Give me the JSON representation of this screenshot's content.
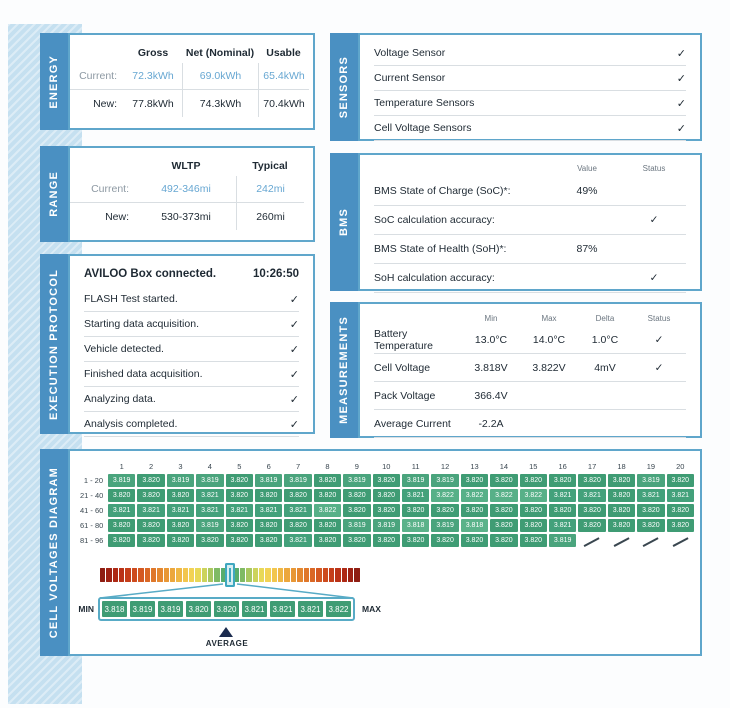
{
  "page": {
    "background": "#FCFDFE",
    "accent_blue": "#4A90C2",
    "panel_border": "#5FA6CB",
    "value_blue": "#67A7D2",
    "label_gray": "#8D99A3",
    "text_dark": "#1E2933",
    "grid_green": "#3F9C74",
    "teal": "#3FA7C0",
    "check_glyph": "✓"
  },
  "energy": {
    "tab": "ENERGY",
    "columns": [
      "Gross",
      "Net (Nominal)",
      "Usable"
    ],
    "rows": [
      {
        "label": "Current:",
        "values": [
          "72.3kWh",
          "69.0kWh",
          "65.4kWh"
        ]
      },
      {
        "label": "New:",
        "values": [
          "77.8kWh",
          "74.3kWh",
          "70.4kWh"
        ]
      }
    ]
  },
  "range": {
    "tab": "RANGE",
    "columns": [
      "WLTP",
      "Typical"
    ],
    "rows": [
      {
        "label": "Current:",
        "values": [
          "492-346mi",
          "242mi"
        ]
      },
      {
        "label": "New:",
        "values": [
          "530-373mi",
          "260mi"
        ]
      }
    ]
  },
  "execution_protocol": {
    "tab": "EXECUTION PROTOCOL",
    "header_label": "AVILOO Box connected.",
    "header_time": "10:26:50",
    "steps": [
      "FLASH Test started.",
      "Starting data acquisition.",
      "Vehicle detected.",
      "Finished data acquisition.",
      "Analyzing data.",
      "Analysis completed."
    ]
  },
  "sensors": {
    "tab": "SENSORS",
    "items": [
      "Voltage Sensor",
      "Current Sensor",
      "Temperature Sensors",
      "Cell Voltage Sensors"
    ]
  },
  "bms": {
    "tab": "BMS",
    "value_header": "Value",
    "status_header": "Status",
    "rows": [
      {
        "label": "BMS State of Charge (SoC)*:",
        "value": "49%",
        "check": false
      },
      {
        "label": "SoC calculation accuracy:",
        "value": "",
        "check": true
      },
      {
        "label": "BMS State of Health (SoH)*:",
        "value": "87%",
        "check": false
      },
      {
        "label": "SoH calculation accuracy:",
        "value": "",
        "check": true
      }
    ]
  },
  "measurements": {
    "tab": "MEASUREMENTS",
    "columns": [
      "Min",
      "Max",
      "Delta",
      "Status"
    ],
    "rows": [
      {
        "label": "Battery Temperature",
        "min": "13.0°C",
        "max": "14.0°C",
        "delta": "1.0°C",
        "check": true
      },
      {
        "label": "Cell Voltage",
        "min": "3.818V",
        "max": "3.822V",
        "delta": "4mV",
        "check": true
      },
      {
        "label": "Pack Voltage",
        "min": "366.4V",
        "max": "",
        "delta": "",
        "check": false
      },
      {
        "label": "Average Current",
        "min": "-2.2A",
        "max": "",
        "delta": "",
        "check": false
      }
    ]
  },
  "cell_voltages": {
    "tab": "CELL VOLTAGES DIAGRAM",
    "min_label": "MIN",
    "max_label": "MAX",
    "average_label": "AVERAGE"
  },
  "chart_data": {
    "type": "heatmap",
    "title": "Cell Voltages Diagram",
    "unit": "V",
    "columns": [
      1,
      2,
      3,
      4,
      5,
      6,
      7,
      8,
      9,
      10,
      11,
      12,
      13,
      14,
      15,
      16,
      17,
      18,
      19,
      20
    ],
    "row_labels": [
      "1 - 20",
      "21 - 40",
      "41 - 60",
      "61 - 80",
      "81 - 96"
    ],
    "values": [
      [
        "3.819",
        "3.820",
        "3.819",
        "3.819",
        "3.820",
        "3.819",
        "3.819",
        "3.820",
        "3.819",
        "3.820",
        "3.819",
        "3.819",
        "3.820",
        "3.820",
        "3.820",
        "3.820",
        "3.820",
        "3.820",
        "3.819",
        "3.820"
      ],
      [
        "3.820",
        "3.820",
        "3.820",
        "3.821",
        "3.820",
        "3.820",
        "3.820",
        "3.820",
        "3.820",
        "3.820",
        "3.821",
        "3.822",
        "3.822",
        "3.822",
        "3.822",
        "3.821",
        "3.821",
        "3.820",
        "3.821",
        "3.821"
      ],
      [
        "3.821",
        "3.821",
        "3.821",
        "3.821",
        "3.821",
        "3.821",
        "3.821",
        "3.822",
        "3.820",
        "3.820",
        "3.820",
        "3.820",
        "3.820",
        "3.820",
        "3.820",
        "3.820",
        "3.820",
        "3.820",
        "3.820",
        "3.820"
      ],
      [
        "3.820",
        "3.820",
        "3.820",
        "3.819",
        "3.820",
        "3.820",
        "3.820",
        "3.820",
        "3.819",
        "3.819",
        "3.818",
        "3.819",
        "3.818",
        "3.820",
        "3.820",
        "3.821",
        "3.820",
        "3.820",
        "3.820",
        "3.820"
      ],
      [
        "3.820",
        "3.820",
        "3.820",
        "3.820",
        "3.820",
        "3.820",
        "3.821",
        "3.820",
        "3.820",
        "3.820",
        "3.820",
        "3.820",
        "3.820",
        "3.820",
        "3.820",
        "3.819",
        null,
        null,
        null,
        null
      ]
    ],
    "value_colors": {
      "3.818": "#5BB28A",
      "3.819": "#4AA47D",
      "3.820": "#3F9C74",
      "3.821": "#43A17B",
      "3.822": "#57B088"
    },
    "scale": {
      "min": 3.818,
      "max": 3.822,
      "average": 3.82,
      "zoom_values": [
        "3.818",
        "3.819",
        "3.819",
        "3.820",
        "3.820",
        "3.821",
        "3.821",
        "3.821",
        "3.822"
      ],
      "average_index": 4,
      "center_color": "#D8EEF2",
      "left_stops": [
        "#8E1D12",
        "#9E2113",
        "#AD2814",
        "#BA3116",
        "#C53D19",
        "#CD4A1D",
        "#D45821",
        "#DA6725",
        "#DF772A",
        "#E4872F",
        "#E89735",
        "#ECA73C",
        "#EFB744",
        "#F2C64D",
        "#F2D254",
        "#E8D857",
        "#CCD35B",
        "#A8C75F",
        "#7FBA64",
        "#58AD6C"
      ]
    }
  }
}
